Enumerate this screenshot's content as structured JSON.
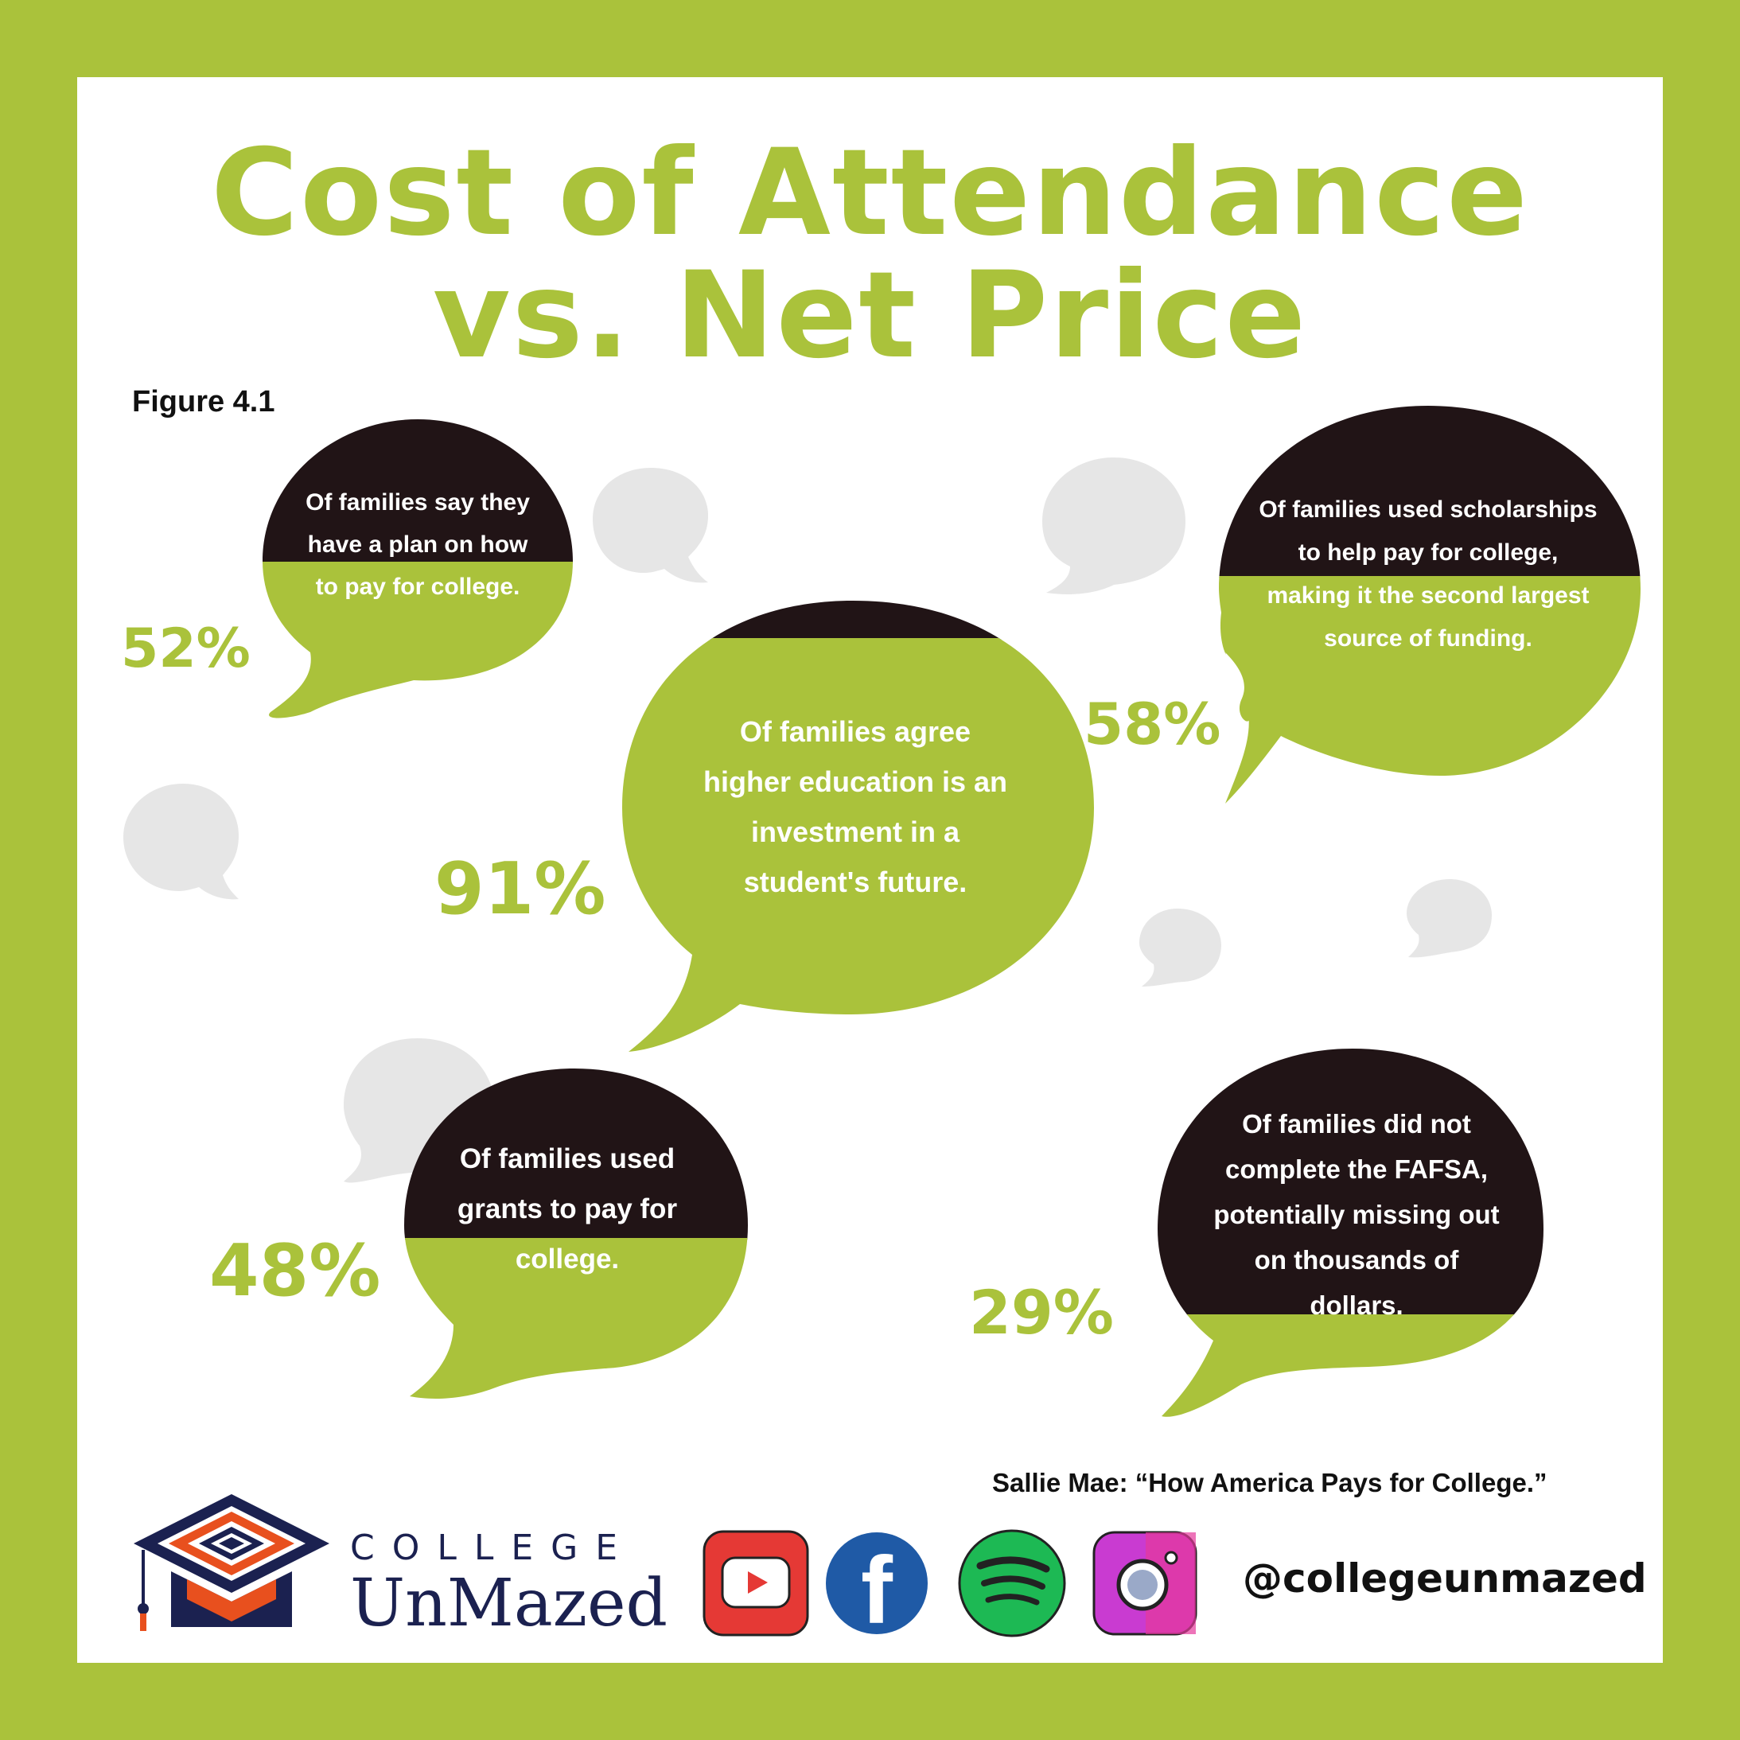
{
  "header": {
    "title_line1": "Cost of Attendance",
    "title_line2": "vs. Net Price",
    "figure_label": "Figure 4.1"
  },
  "stats": [
    {
      "percent": "52%",
      "lines": [
        "Of families say they",
        "have a plan on how",
        "to pay for college."
      ]
    },
    {
      "percent": "58%",
      "lines": [
        "Of families used scholarships",
        "to help pay for college,",
        "making it the second largest",
        "source of funding."
      ]
    },
    {
      "percent": "91%",
      "lines": [
        "Of families agree",
        "higher education is an",
        "investment in a",
        "student's future."
      ]
    },
    {
      "percent": "48%",
      "lines": [
        "Of families used",
        "grants to pay for",
        "college."
      ]
    },
    {
      "percent": "29%",
      "lines": [
        "Of families did not",
        "complete the FAFSA,",
        "potentially missing out",
        "on thousands of",
        "dollars."
      ]
    }
  ],
  "footer": {
    "source": "Sallie Mae: “How America Pays for College.”",
    "logo_top": "COLLEGE",
    "logo_bottom": "UnMazed",
    "handle": "@collegeunmazed",
    "social_icons": [
      "youtube-icon",
      "facebook-icon",
      "spotify-icon",
      "instagram-icon"
    ]
  },
  "colors": {
    "green": "#aac23b",
    "dark": "#211416",
    "gray_bubble": "#e6e6e6",
    "navy": "#1b2150",
    "orange": "#e8501e"
  }
}
